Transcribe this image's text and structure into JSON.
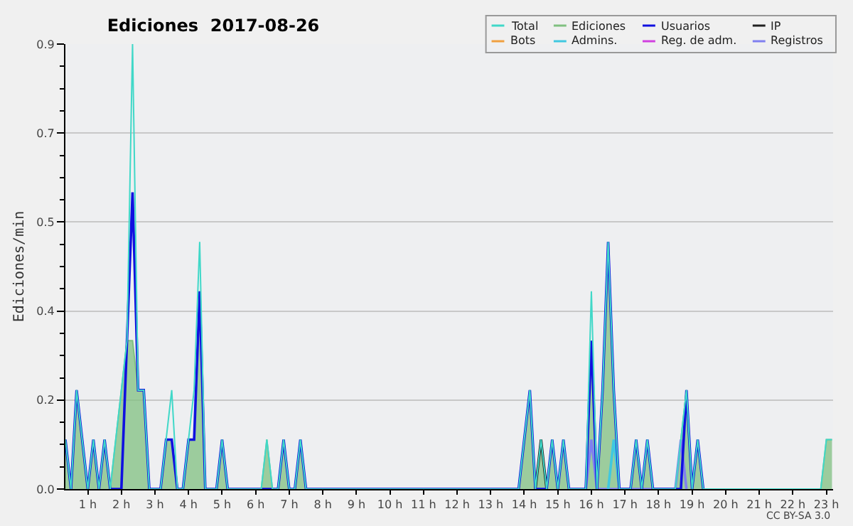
{
  "chart_data": {
    "type": "line",
    "title": "Ediciones  2017-08-26",
    "ylabel": "Ediciones/min",
    "annotations": [
      "CC BY-SA 3.0"
    ],
    "xlim": [
      0.333,
      23.2
    ],
    "ylim": [
      0,
      0.9
    ],
    "xticks": [
      {
        "value": 1,
        "label": "1 h"
      },
      {
        "value": 2,
        "label": "2 h"
      },
      {
        "value": 3,
        "label": "3 h"
      },
      {
        "value": 4,
        "label": "4 h"
      },
      {
        "value": 5,
        "label": "5 h"
      },
      {
        "value": 6,
        "label": "6 h"
      },
      {
        "value": 7,
        "label": "7 h"
      },
      {
        "value": 8,
        "label": "8 h"
      },
      {
        "value": 9,
        "label": "9 h"
      },
      {
        "value": 10,
        "label": "10 h"
      },
      {
        "value": 11,
        "label": "11 h"
      },
      {
        "value": 12,
        "label": "12 h"
      },
      {
        "value": 13,
        "label": "13 h"
      },
      {
        "value": 14,
        "label": "14 h"
      },
      {
        "value": 15,
        "label": "15 h"
      },
      {
        "value": 16,
        "label": "16 h"
      },
      {
        "value": 17,
        "label": "17 h"
      },
      {
        "value": 18,
        "label": "18 h"
      },
      {
        "value": 19,
        "label": "19 h"
      },
      {
        "value": 20,
        "label": "20 h"
      },
      {
        "value": 21,
        "label": "21 h"
      },
      {
        "value": 22,
        "label": "22 h"
      },
      {
        "value": 23,
        "label": "23 h"
      }
    ],
    "yticks": [
      {
        "value": 0,
        "label": "0.0"
      },
      {
        "value": 0.045,
        "label": null
      },
      {
        "value": 0.09,
        "label": null
      },
      {
        "value": 0.135,
        "label": null
      },
      {
        "value": 0.18,
        "label": "0.2"
      },
      {
        "value": 0.225,
        "label": null
      },
      {
        "value": 0.27,
        "label": null
      },
      {
        "value": 0.315,
        "label": null
      },
      {
        "value": 0.36,
        "label": "0.4"
      },
      {
        "value": 0.405,
        "label": null
      },
      {
        "value": 0.45,
        "label": null
      },
      {
        "value": 0.495,
        "label": null
      },
      {
        "value": 0.54,
        "label": "0.5"
      },
      {
        "value": 0.585,
        "label": null
      },
      {
        "value": 0.63,
        "label": null
      },
      {
        "value": 0.675,
        "label": null
      },
      {
        "value": 0.72,
        "label": "0.7"
      },
      {
        "value": 0.765,
        "label": null
      },
      {
        "value": 0.81,
        "label": null
      },
      {
        "value": 0.855,
        "label": null
      },
      {
        "value": 0.9,
        "label": "0.9"
      }
    ],
    "grid": "y",
    "legend": "top right",
    "marker": "none",
    "series": [
      {
        "name": "Total",
        "color": "#40d8c8",
        "x": [
          0.333,
          0.5,
          0.667,
          1.0,
          1.167,
          1.333,
          1.5,
          1.667,
          1.833,
          2.0,
          2.167,
          2.333,
          2.5,
          2.667,
          2.833,
          3.167,
          3.333,
          3.5,
          3.667,
          3.833,
          4.0,
          4.167,
          4.333,
          4.5,
          4.833,
          5.0,
          5.167,
          6.167,
          6.333,
          6.5,
          6.667,
          6.833,
          7.0,
          7.167,
          7.333,
          7.5,
          13.833,
          14.0,
          14.167,
          14.333,
          14.5,
          14.667,
          14.833,
          15.0,
          15.167,
          15.333,
          15.833,
          16.0,
          16.167,
          16.333,
          16.5,
          16.667,
          16.833,
          17.167,
          17.333,
          17.5,
          17.667,
          17.833,
          18.5,
          18.667,
          18.833,
          19.0,
          19.167,
          19.333,
          22.833,
          23.0,
          23.167
        ],
        "values": [
          0.1,
          0,
          0.2,
          0,
          0.1,
          0,
          0.1,
          0,
          0.1,
          0.2,
          0.3,
          0.9,
          0.2,
          0.2,
          0,
          0,
          0.1,
          0.2,
          0,
          0,
          0.1,
          0.2,
          0.5,
          0,
          0,
          0.1,
          0,
          0,
          0.1,
          0,
          0,
          0.1,
          0,
          0,
          0.1,
          0,
          0,
          0.1,
          0.2,
          0,
          0.1,
          0,
          0.1,
          0,
          0.1,
          0,
          0,
          0.4,
          0,
          0.2,
          0.5,
          0.2,
          0,
          0,
          0.1,
          0,
          0.1,
          0,
          0,
          0.1,
          0.2,
          0,
          0.1,
          0,
          0,
          0.1,
          0.1
        ]
      },
      {
        "name": "Ediciones",
        "type": "area",
        "color": "#80c080",
        "x": [
          0.333,
          0.5,
          0.667,
          1.0,
          1.167,
          1.333,
          1.5,
          1.667,
          1.833,
          2.0,
          2.167,
          2.333,
          2.5,
          2.667,
          2.833,
          3.167,
          3.333,
          3.5,
          3.667,
          3.833,
          4.0,
          4.167,
          4.333,
          4.5,
          4.833,
          5.0,
          5.167,
          6.167,
          6.333,
          6.5,
          6.667,
          6.833,
          7.0,
          7.167,
          7.333,
          7.5,
          13.833,
          14.0,
          14.167,
          14.333,
          14.5,
          14.667,
          14.833,
          15.0,
          15.167,
          15.333,
          15.833,
          16.0,
          16.167,
          16.333,
          16.5,
          16.667,
          16.833,
          17.167,
          17.333,
          17.5,
          17.667,
          17.833,
          18.5,
          18.667,
          18.833,
          19.0,
          19.167,
          19.333,
          22.833,
          23.0,
          23.167
        ],
        "values": [
          0.1,
          0,
          0.2,
          0,
          0.1,
          0,
          0.1,
          0,
          0.1,
          0.2,
          0.3,
          0.3,
          0.2,
          0.2,
          0,
          0,
          0.1,
          0.1,
          0,
          0,
          0.1,
          0.1,
          0.4,
          0,
          0,
          0.1,
          0,
          0,
          0.1,
          0,
          0,
          0.1,
          0,
          0,
          0.1,
          0,
          0,
          0.1,
          0.2,
          0,
          0.1,
          0,
          0.1,
          0,
          0.1,
          0,
          0,
          0.3,
          0,
          0.2,
          0.5,
          0.2,
          0,
          0,
          0.1,
          0,
          0.1,
          0,
          0,
          0.1,
          0.2,
          0,
          0.1,
          0,
          0,
          0.1,
          0.1
        ]
      },
      {
        "name": "Usuarios",
        "color": "#1010e0",
        "x": [
          0.333,
          0.5,
          0.667,
          1.0,
          1.167,
          1.333,
          1.5,
          1.667,
          2.0,
          2.167,
          2.333,
          2.5,
          2.667,
          2.833,
          3.167,
          3.333,
          3.5,
          3.667,
          3.833,
          4.0,
          4.167,
          4.333,
          4.5,
          4.833,
          5.0,
          5.167,
          6.667,
          6.833,
          7.0,
          7.167,
          7.333,
          7.5,
          13.833,
          14.0,
          14.167,
          14.333,
          14.667,
          14.833,
          15.0,
          15.167,
          15.333,
          15.833,
          16.0,
          16.167,
          16.333,
          16.5,
          16.667,
          16.833,
          17.167,
          17.333,
          17.5,
          17.667,
          17.833,
          18.667,
          18.833,
          19.0,
          19.167,
          19.333
        ],
        "values": [
          0.1,
          0,
          0.2,
          0,
          0.1,
          0,
          0.1,
          0,
          0,
          0.3,
          0.6,
          0.2,
          0.2,
          0,
          0,
          0.1,
          0.1,
          0,
          0,
          0.1,
          0.1,
          0.4,
          0,
          0,
          0.1,
          0,
          0,
          0.1,
          0,
          0,
          0.1,
          0,
          0,
          0.1,
          0.2,
          0,
          0,
          0.1,
          0,
          0.1,
          0,
          0,
          0.3,
          0,
          0.2,
          0.5,
          0.2,
          0,
          0,
          0.1,
          0,
          0.1,
          0,
          0,
          0.2,
          0,
          0.1,
          0
        ]
      },
      {
        "name": "IP",
        "color": "#202020",
        "x": [
          14.333,
          14.5,
          14.667
        ],
        "values": [
          0,
          0.1,
          0
        ]
      },
      {
        "name": "Bots",
        "color": "#f0a040"
      },
      {
        "name": "Admins.",
        "color": "#40c8e0",
        "x": [
          16.5,
          16.667,
          16.833
        ],
        "values": [
          0,
          0.1,
          0
        ]
      },
      {
        "name": "Reg. de adm.",
        "color": "#d040e0"
      },
      {
        "name": "Registros",
        "color": "#8080f0",
        "x": [
          15.833,
          16.0,
          16.167,
          18.5,
          18.667,
          18.833
        ],
        "values": [
          0,
          0.1,
          0,
          0,
          0.1,
          0
        ]
      }
    ]
  }
}
